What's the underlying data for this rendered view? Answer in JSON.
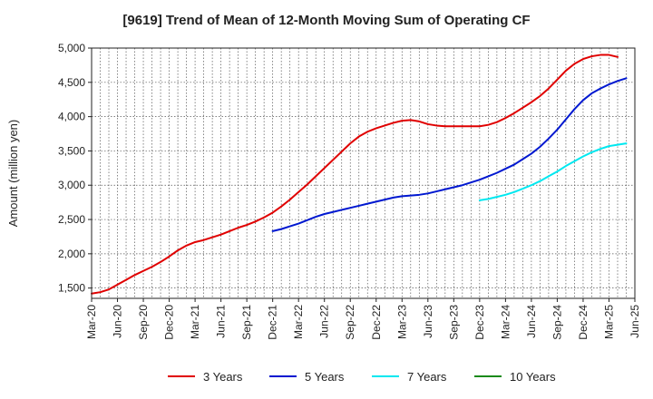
{
  "chart_data": {
    "type": "line",
    "title": "[9619]  Trend of Mean of 12-Month Moving Sum of Operating CF",
    "xlabel": "",
    "ylabel": "Amount (million yen)",
    "ylim": [
      1350,
      5000
    ],
    "yticks": [
      1500,
      2000,
      2500,
      3000,
      3500,
      4000,
      4500,
      5000
    ],
    "ytick_labels": [
      "1,500",
      "2,000",
      "2,500",
      "3,000",
      "3,500",
      "4,000",
      "4,500",
      "5,000"
    ],
    "x_tick_labels": [
      "Mar-20",
      "Jun-20",
      "Sep-20",
      "Dec-20",
      "Mar-21",
      "Jun-21",
      "Sep-21",
      "Dec-21",
      "Mar-22",
      "Jun-22",
      "Sep-22",
      "Dec-22",
      "Mar-23",
      "Jun-23",
      "Sep-23",
      "Dec-23",
      "Mar-24",
      "Jun-24",
      "Sep-24",
      "Dec-24",
      "Mar-25",
      "Jun-25"
    ],
    "x_range_months": [
      0,
      63
    ],
    "grid": true,
    "legend_position": "bottom",
    "series": [
      {
        "name": "3 Years",
        "color": "#e00000",
        "x_start": 0,
        "values": [
          1420,
          1440,
          1480,
          1550,
          1620,
          1690,
          1750,
          1810,
          1880,
          1960,
          2050,
          2120,
          2170,
          2200,
          2240,
          2280,
          2330,
          2380,
          2420,
          2470,
          2530,
          2600,
          2690,
          2790,
          2900,
          3010,
          3130,
          3250,
          3370,
          3490,
          3610,
          3710,
          3780,
          3830,
          3870,
          3910,
          3940,
          3950,
          3930,
          3890,
          3870,
          3860,
          3860,
          3860,
          3860,
          3860,
          3880,
          3920,
          3980,
          4050,
          4130,
          4210,
          4300,
          4410,
          4540,
          4670,
          4770,
          4840,
          4880,
          4900,
          4900,
          4870
        ]
      },
      {
        "name": "5 Years",
        "color": "#0018d0",
        "x_start": 21,
        "values": [
          2330,
          2360,
          2400,
          2440,
          2490,
          2540,
          2580,
          2610,
          2640,
          2670,
          2700,
          2730,
          2760,
          2790,
          2820,
          2840,
          2850,
          2860,
          2880,
          2910,
          2940,
          2970,
          3000,
          3040,
          3080,
          3130,
          3180,
          3240,
          3300,
          3380,
          3460,
          3560,
          3680,
          3810,
          3960,
          4110,
          4240,
          4340,
          4410,
          4470,
          4520,
          4560
        ]
      },
      {
        "name": "7 Years",
        "color": "#00e8f0",
        "x_start": 45,
        "values": [
          2780,
          2800,
          2830,
          2860,
          2900,
          2950,
          3000,
          3060,
          3130,
          3200,
          3280,
          3350,
          3420,
          3480,
          3530,
          3570,
          3590,
          3610
        ]
      },
      {
        "name": "10 Years",
        "color": "#1a8a1a",
        "x_start": 0,
        "values": []
      }
    ]
  }
}
